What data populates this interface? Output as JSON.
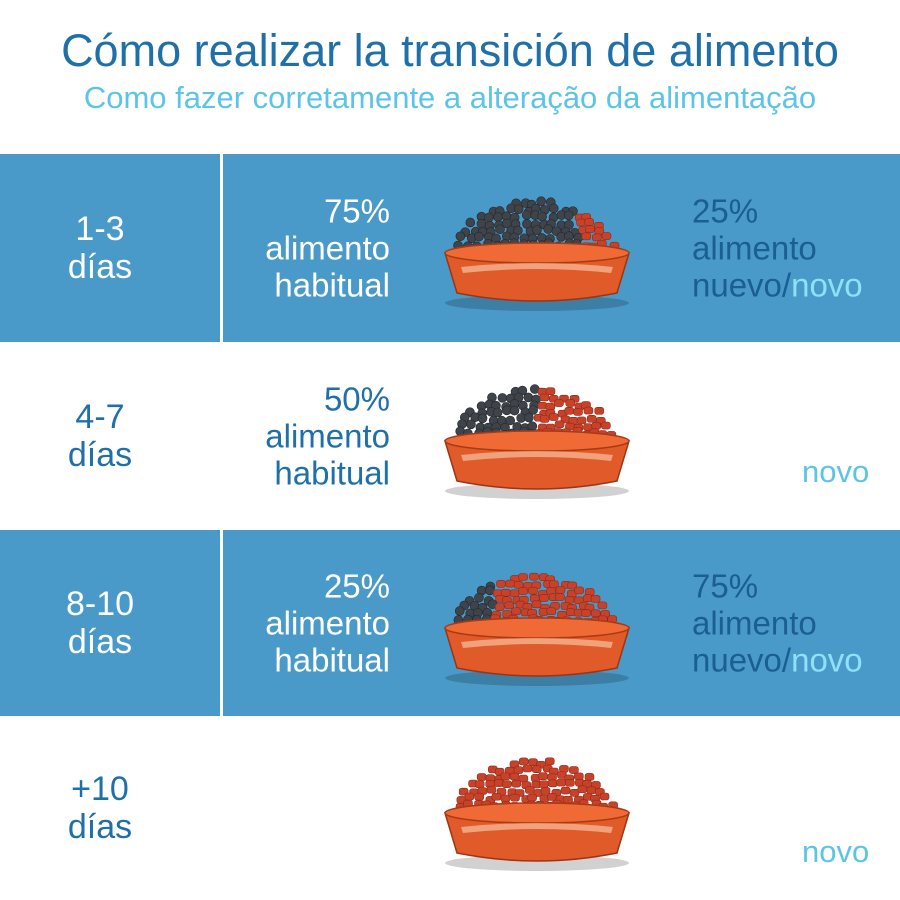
{
  "header": {
    "title": "Cómo realizar la transición de alimento",
    "subtitle": "Como fazer corretamente a alteração da alimentação"
  },
  "rows": [
    {
      "days_line1": "1-3",
      "days_line2": "días",
      "old_pct": "75%",
      "old_label1": "alimento",
      "old_label2": "habitual",
      "new_pct": "25%",
      "new_label1": "alimento",
      "new_label2": "nuevo/",
      "new_label3": "novo",
      "new_fraction": 0.25
    },
    {
      "days_line1": "4-7",
      "days_line2": "días",
      "old_pct": "50%",
      "old_label1": "alimento",
      "old_label2": "habitual",
      "novo": "novo",
      "new_fraction": 0.5
    },
    {
      "days_line1": "8-10",
      "days_line2": "días",
      "old_pct": "25%",
      "old_label1": "alimento",
      "old_label2": "habitual",
      "new_pct": "75%",
      "new_label1": "alimento",
      "new_label2": "nuevo/",
      "new_label3": "novo",
      "new_fraction": 0.75
    },
    {
      "days_line1": "+10",
      "days_line2": "días",
      "novo": "novo",
      "new_fraction": 1.0
    }
  ],
  "colors": {
    "blue_band": "#4a9ac9",
    "title": "#1f6fa8",
    "subtitle": "#5cc4e6",
    "old_kibble": "#3f444b",
    "new_kibble": "#c8422a",
    "bowl": "#e05a2a"
  }
}
